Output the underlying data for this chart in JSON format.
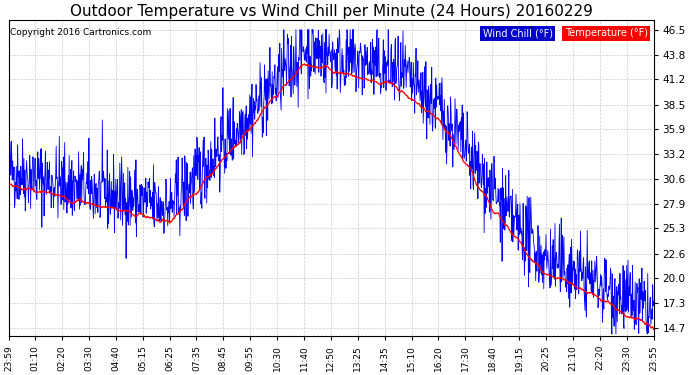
{
  "title": "Outdoor Temperature vs Wind Chill per Minute (24 Hours) 20160229",
  "copyright": "Copyright 2016 Cartronics.com",
  "ylim_min": 13.8,
  "ylim_max": 47.5,
  "yticks": [
    46.5,
    43.8,
    41.2,
    38.5,
    35.9,
    33.2,
    30.6,
    27.9,
    25.3,
    22.6,
    20.0,
    17.3,
    14.7
  ],
  "wind_chill_color": "#ff0000",
  "temperature_color": "#0000ff",
  "background_color": "#ffffff",
  "legend_wind_chill_bg": "#0000cc",
  "legend_temp_bg": "#ff0000",
  "legend_wind_chill_text": "Wind Chill (°F)",
  "legend_temp_text": "Temperature (°F)",
  "grid_color": "#cccccc",
  "grid_style": "--",
  "title_fontsize": 11,
  "tick_fontsize": 6.5,
  "copyright_fontsize": 6.5,
  "time_labels": [
    "23:59",
    "01:10",
    "02:20",
    "03:30",
    "04:40",
    "05:15",
    "06:25",
    "07:35",
    "08:45",
    "09:55",
    "10:30",
    "11:40",
    "12:50",
    "13:25",
    "14:35",
    "15:10",
    "16:20",
    "17:30",
    "18:40",
    "19:15",
    "20:25",
    "21:10",
    "22:20",
    "23:30",
    "23:55"
  ]
}
